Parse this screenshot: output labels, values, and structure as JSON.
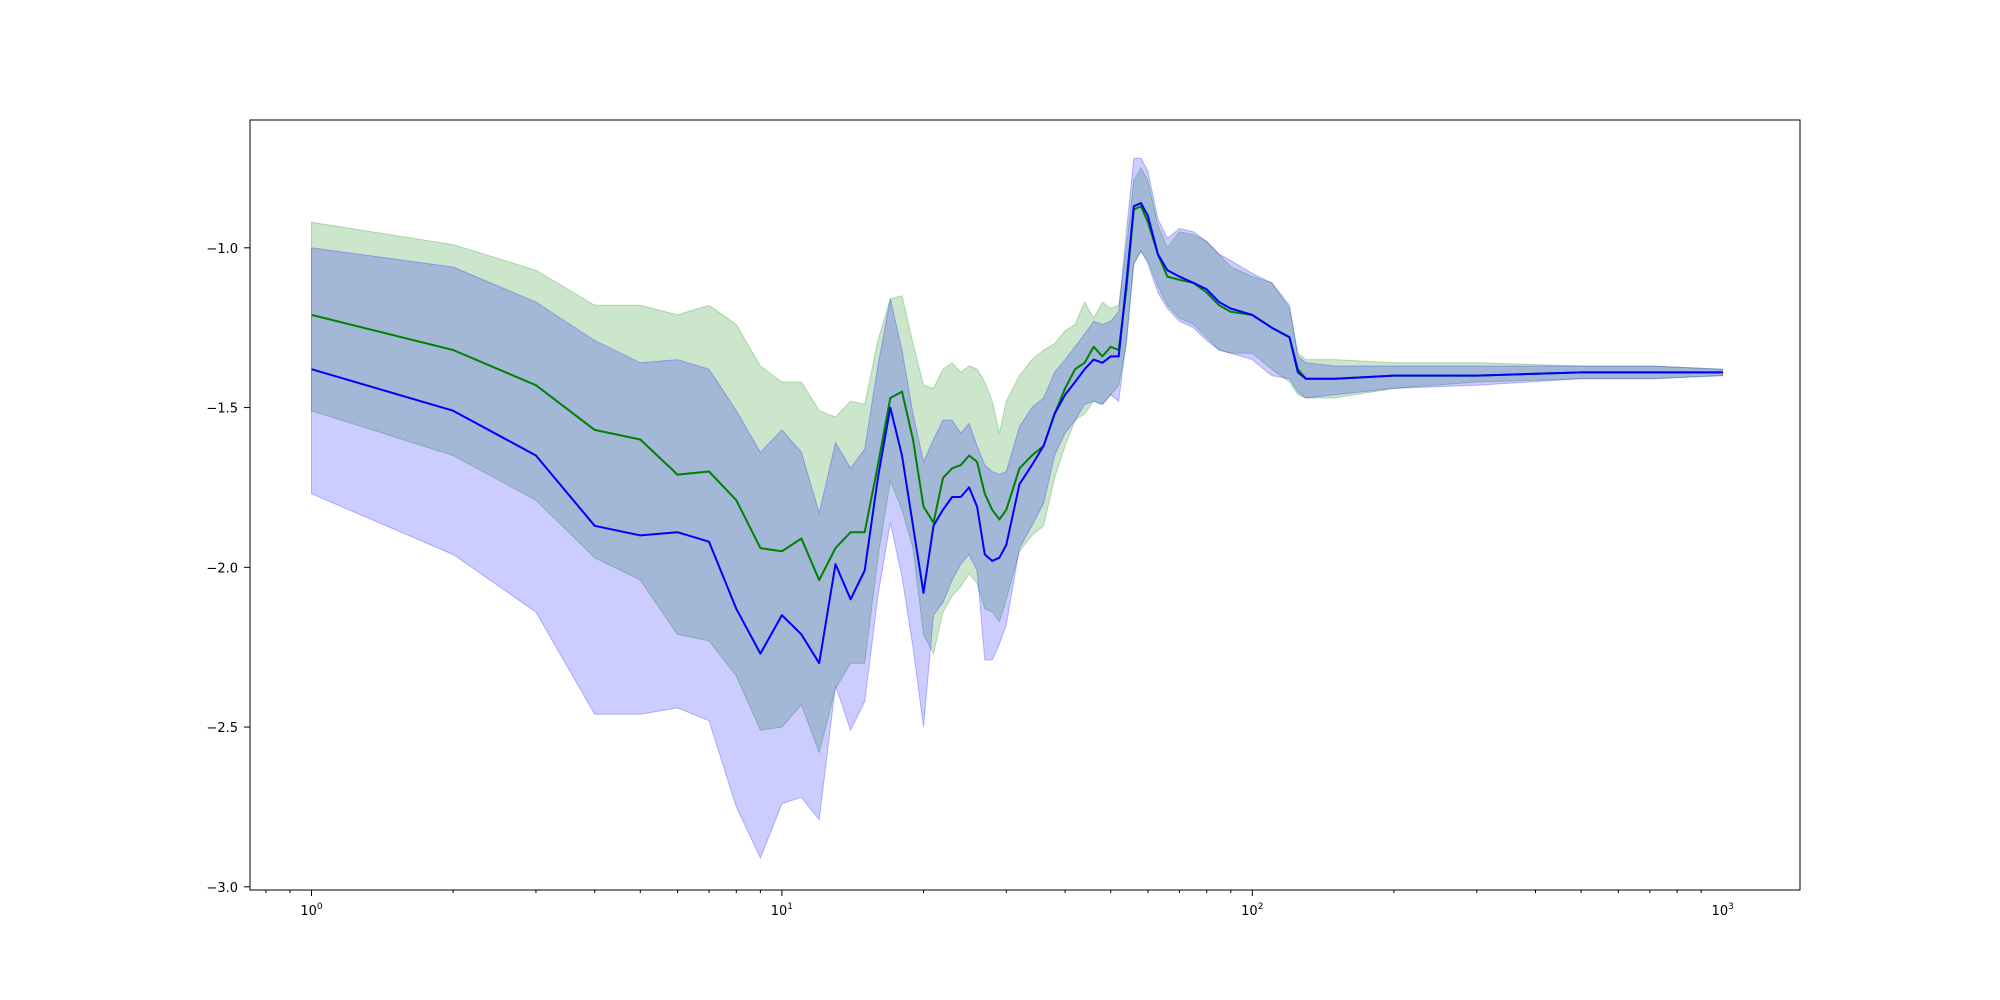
{
  "chart_data": {
    "type": "line",
    "title": "",
    "xlabel": "",
    "ylabel": "",
    "xscale": "log",
    "xlim": [
      0.74,
      1460
    ],
    "ylim": [
      -3.01,
      -0.6
    ],
    "grid": false,
    "legend": "none",
    "x_tick_labels": [
      {
        "value": 1,
        "base": "10",
        "exp": "0"
      },
      {
        "value": 10,
        "base": "10",
        "exp": "1"
      },
      {
        "value": 100,
        "base": "10",
        "exp": "2"
      },
      {
        "value": 1000,
        "base": "10",
        "exp": "3"
      }
    ],
    "y_tick_labels": [
      {
        "value": -1.0,
        "label": "−1.0"
      },
      {
        "value": -1.5,
        "label": "−1.5"
      },
      {
        "value": -2.0,
        "label": "−2.0"
      },
      {
        "value": -2.5,
        "label": "−2.5"
      },
      {
        "value": -3.0,
        "label": "−3.0"
      }
    ],
    "series": [
      {
        "color": "#008000",
        "band_color": "#008000",
        "band_opacity": 0.2,
        "x": [
          1,
          2,
          3,
          4,
          5,
          6,
          7,
          8,
          9,
          10,
          11,
          12,
          13,
          14,
          15,
          16,
          17,
          18,
          19,
          20,
          21,
          22,
          23,
          24,
          25,
          26,
          27,
          28,
          29,
          30,
          32,
          34,
          36,
          38,
          40,
          42,
          44,
          46,
          48,
          50,
          52,
          54,
          56,
          58,
          60,
          63,
          66,
          70,
          75,
          80,
          85,
          90,
          100,
          110,
          120,
          125,
          130,
          150,
          200,
          300,
          500,
          700,
          1000
        ],
        "mean": [
          -1.21,
          -1.32,
          -1.43,
          -1.57,
          -1.6,
          -1.71,
          -1.7,
          -1.79,
          -1.94,
          -1.95,
          -1.91,
          -2.04,
          -1.94,
          -1.89,
          -1.89,
          -1.68,
          -1.47,
          -1.45,
          -1.6,
          -1.81,
          -1.86,
          -1.72,
          -1.69,
          -1.68,
          -1.65,
          -1.67,
          -1.77,
          -1.82,
          -1.85,
          -1.82,
          -1.69,
          -1.65,
          -1.62,
          -1.52,
          -1.44,
          -1.38,
          -1.36,
          -1.31,
          -1.34,
          -1.31,
          -1.32,
          -1.13,
          -0.88,
          -0.87,
          -0.92,
          -1.02,
          -1.09,
          -1.1,
          -1.11,
          -1.14,
          -1.18,
          -1.2,
          -1.21,
          -1.25,
          -1.28,
          -1.38,
          -1.41,
          -1.41,
          -1.4,
          -1.4,
          -1.39,
          -1.39,
          -1.39
        ],
        "upper": [
          -0.92,
          -0.99,
          -1.07,
          -1.18,
          -1.18,
          -1.21,
          -1.18,
          -1.24,
          -1.37,
          -1.42,
          -1.42,
          -1.51,
          -1.53,
          -1.48,
          -1.49,
          -1.29,
          -1.16,
          -1.15,
          -1.3,
          -1.43,
          -1.44,
          -1.38,
          -1.36,
          -1.39,
          -1.37,
          -1.38,
          -1.42,
          -1.48,
          -1.58,
          -1.48,
          -1.4,
          -1.35,
          -1.32,
          -1.3,
          -1.26,
          -1.24,
          -1.17,
          -1.22,
          -1.17,
          -1.19,
          -1.18,
          -1.0,
          -0.79,
          -0.75,
          -0.79,
          -0.93,
          -1.0,
          -0.95,
          -0.96,
          -0.98,
          -1.02,
          -1.06,
          -1.09,
          -1.11,
          -1.19,
          -1.33,
          -1.35,
          -1.35,
          -1.36,
          -1.36,
          -1.37,
          -1.37,
          -1.38
        ],
        "lower": [
          -1.51,
          -1.65,
          -1.79,
          -1.97,
          -2.04,
          -2.21,
          -2.23,
          -2.34,
          -2.51,
          -2.5,
          -2.43,
          -2.58,
          -2.38,
          -2.3,
          -2.3,
          -1.97,
          -1.73,
          -1.82,
          -1.94,
          -2.21,
          -2.27,
          -2.14,
          -2.09,
          -2.06,
          -2.02,
          -2.05,
          -2.13,
          -2.14,
          -2.17,
          -2.1,
          -1.95,
          -1.9,
          -1.87,
          -1.72,
          -1.62,
          -1.54,
          -1.52,
          -1.48,
          -1.49,
          -1.46,
          -1.43,
          -1.3,
          -1.05,
          -1.01,
          -1.04,
          -1.12,
          -1.18,
          -1.22,
          -1.24,
          -1.28,
          -1.32,
          -1.33,
          -1.33,
          -1.38,
          -1.42,
          -1.46,
          -1.47,
          -1.47,
          -1.44,
          -1.42,
          -1.41,
          -1.41,
          -1.4
        ]
      },
      {
        "color": "#0000ff",
        "band_color": "#0000ff",
        "band_opacity": 0.2,
        "x": [
          1,
          2,
          3,
          4,
          5,
          6,
          7,
          8,
          9,
          10,
          11,
          12,
          13,
          14,
          15,
          16,
          17,
          18,
          19,
          20,
          21,
          22,
          23,
          24,
          25,
          26,
          27,
          28,
          29,
          30,
          32,
          34,
          36,
          38,
          40,
          42,
          44,
          46,
          48,
          50,
          52,
          54,
          56,
          58,
          60,
          63,
          66,
          70,
          75,
          80,
          85,
          90,
          100,
          110,
          120,
          125,
          130,
          150,
          200,
          300,
          500,
          700,
          1000
        ],
        "mean": [
          -1.38,
          -1.51,
          -1.65,
          -1.87,
          -1.9,
          -1.89,
          -1.92,
          -2.13,
          -2.27,
          -2.15,
          -2.21,
          -2.3,
          -1.99,
          -2.1,
          -2.01,
          -1.72,
          -1.5,
          -1.65,
          -1.87,
          -2.08,
          -1.87,
          -1.82,
          -1.78,
          -1.78,
          -1.75,
          -1.81,
          -1.96,
          -1.98,
          -1.97,
          -1.93,
          -1.74,
          -1.68,
          -1.62,
          -1.52,
          -1.46,
          -1.42,
          -1.38,
          -1.35,
          -1.36,
          -1.34,
          -1.34,
          -1.11,
          -0.87,
          -0.86,
          -0.9,
          -1.02,
          -1.07,
          -1.09,
          -1.11,
          -1.13,
          -1.17,
          -1.19,
          -1.21,
          -1.25,
          -1.28,
          -1.39,
          -1.41,
          -1.41,
          -1.4,
          -1.4,
          -1.39,
          -1.39,
          -1.39
        ],
        "upper": [
          -1.0,
          -1.06,
          -1.17,
          -1.29,
          -1.36,
          -1.35,
          -1.38,
          -1.51,
          -1.64,
          -1.57,
          -1.64,
          -1.83,
          -1.61,
          -1.69,
          -1.63,
          -1.37,
          -1.16,
          -1.32,
          -1.52,
          -1.67,
          -1.6,
          -1.54,
          -1.54,
          -1.58,
          -1.55,
          -1.62,
          -1.68,
          -1.7,
          -1.71,
          -1.7,
          -1.56,
          -1.5,
          -1.47,
          -1.39,
          -1.35,
          -1.31,
          -1.27,
          -1.23,
          -1.24,
          -1.23,
          -1.2,
          -0.95,
          -0.72,
          -0.72,
          -0.76,
          -0.91,
          -0.97,
          -0.94,
          -0.95,
          -0.98,
          -1.02,
          -1.04,
          -1.08,
          -1.11,
          -1.18,
          -1.34,
          -1.36,
          -1.37,
          -1.37,
          -1.37,
          -1.37,
          -1.37,
          -1.38
        ],
        "lower": [
          -1.77,
          -1.96,
          -2.14,
          -2.46,
          -2.46,
          -2.44,
          -2.48,
          -2.75,
          -2.91,
          -2.74,
          -2.72,
          -2.79,
          -2.37,
          -2.51,
          -2.42,
          -2.09,
          -1.86,
          -2.03,
          -2.25,
          -2.5,
          -2.15,
          -2.11,
          -2.04,
          -1.99,
          -1.96,
          -2.01,
          -2.29,
          -2.29,
          -2.24,
          -2.18,
          -1.94,
          -1.87,
          -1.8,
          -1.65,
          -1.58,
          -1.54,
          -1.49,
          -1.48,
          -1.49,
          -1.46,
          -1.48,
          -1.29,
          -1.05,
          -1.01,
          -1.05,
          -1.14,
          -1.19,
          -1.23,
          -1.25,
          -1.29,
          -1.32,
          -1.33,
          -1.35,
          -1.4,
          -1.41,
          -1.45,
          -1.47,
          -1.46,
          -1.44,
          -1.43,
          -1.41,
          -1.41,
          -1.4
        ]
      }
    ]
  }
}
